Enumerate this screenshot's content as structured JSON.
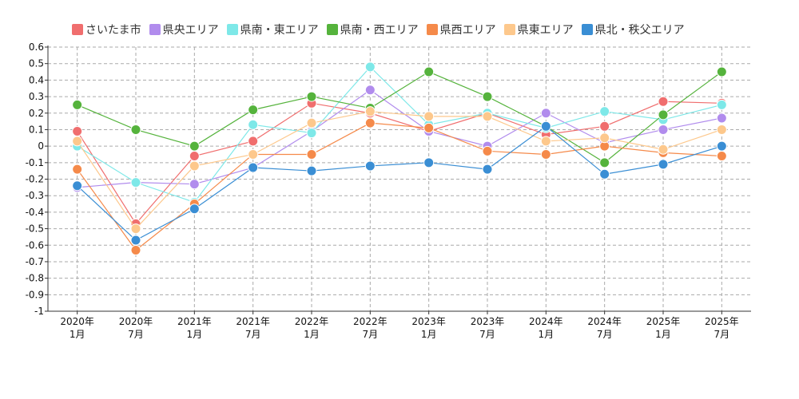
{
  "chart_data": {
    "type": "line",
    "categories": [
      [
        "2020年",
        "1月"
      ],
      [
        "2020年",
        "7月"
      ],
      [
        "2021年",
        "1月"
      ],
      [
        "2021年",
        "7月"
      ],
      [
        "2022年",
        "1月"
      ],
      [
        "2022年",
        "7月"
      ],
      [
        "2023年",
        "1月"
      ],
      [
        "2023年",
        "7月"
      ],
      [
        "2024年",
        "1月"
      ],
      [
        "2024年",
        "7月"
      ],
      [
        "2025年",
        "1月"
      ],
      [
        "2025年",
        "7月"
      ]
    ],
    "ylim": [
      -1,
      0.6
    ],
    "yticks": [
      0.6,
      0.5,
      0.4,
      0.3,
      0.2,
      0.1,
      0,
      -0.1,
      -0.2,
      -0.3,
      -0.4,
      -0.5,
      -0.6,
      -0.7,
      -0.8,
      -0.9,
      -1
    ],
    "ytick_labels": [
      "0.6",
      "0.5",
      "0.4",
      "0.3",
      "0.2",
      "0.1",
      "0",
      "-0.1",
      "-0.2",
      "-0.3",
      "-0.4",
      "-0.5",
      "-0.6",
      "-0.7",
      "-0.8",
      "-0.9",
      "-1"
    ],
    "grid": true,
    "legend_position": "top",
    "series": [
      {
        "name": "さいたま市",
        "color": "#f06e6e",
        "values": [
          0.09,
          -0.47,
          -0.06,
          0.03,
          0.26,
          0.2,
          0.09,
          0.2,
          0.07,
          0.12,
          0.27,
          0.26
        ]
      },
      {
        "name": "県央エリア",
        "color": "#b18ced",
        "values": [
          -0.25,
          -0.22,
          -0.23,
          -0.13,
          0.09,
          0.34,
          0.09,
          0.0,
          0.2,
          0.02,
          0.1,
          0.17
        ]
      },
      {
        "name": "県南・東エリア",
        "color": "#7ee8e8",
        "values": [
          0.0,
          -0.22,
          -0.34,
          0.13,
          0.08,
          0.48,
          0.13,
          0.2,
          0.11,
          0.21,
          0.16,
          0.25
        ]
      },
      {
        "name": "県南・西エリア",
        "color": "#55b33c",
        "values": [
          0.25,
          0.1,
          0.0,
          0.22,
          0.3,
          0.23,
          0.45,
          0.3,
          0.12,
          -0.1,
          0.19,
          0.45
        ]
      },
      {
        "name": "県西エリア",
        "color": "#f58a4a",
        "values": [
          -0.14,
          -0.63,
          -0.35,
          -0.05,
          -0.05,
          0.14,
          0.11,
          -0.03,
          -0.05,
          0.0,
          -0.04,
          -0.06
        ]
      },
      {
        "name": "県東エリア",
        "color": "#fdc88c",
        "values": [
          0.03,
          -0.5,
          -0.12,
          -0.05,
          0.14,
          0.21,
          0.18,
          0.18,
          0.03,
          0.05,
          -0.02,
          0.1
        ]
      },
      {
        "name": "県北・秩父エリア",
        "color": "#3a8ed4",
        "values": [
          -0.24,
          -0.57,
          -0.38,
          -0.13,
          -0.15,
          -0.12,
          -0.1,
          -0.14,
          0.12,
          -0.17,
          -0.11,
          0.0
        ]
      }
    ]
  }
}
